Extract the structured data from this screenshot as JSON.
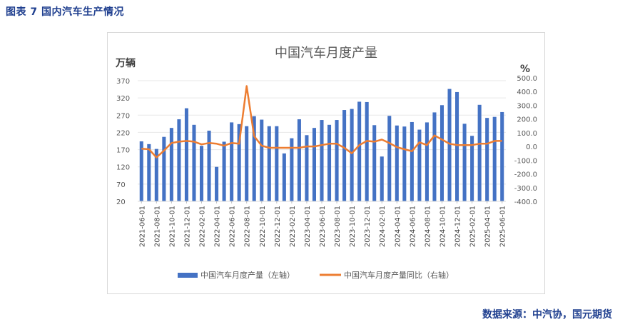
{
  "figure_caption": "图表  7  国内汽车生产情况",
  "source_note": "数据来源：中汽协，国元期货",
  "colors": {
    "bar": "#4472c4",
    "line": "#ed7d31",
    "caption": "#1f3f8f"
  },
  "chart_data": {
    "type": "bar",
    "title": "中国汽车月度产量",
    "ylabel": "万辆",
    "y2label": "%",
    "ylim": [
      20,
      370
    ],
    "y2lim": [
      -400,
      500
    ],
    "yticks": [
      20,
      70,
      120,
      170,
      220,
      270,
      320,
      370
    ],
    "y2ticks": [
      -400,
      -300,
      -200,
      -100,
      0,
      100,
      200,
      300,
      400,
      500
    ],
    "y2tick_labels": [
      "-400.0",
      "-300.0",
      "-200.0",
      "-100.0",
      "0.0",
      "100.0",
      "200.0",
      "300.0",
      "400.0",
      "500.0"
    ],
    "legend_position": "bottom",
    "categories": [
      "2021-06-01",
      "2021-07-01",
      "2021-08-01",
      "2021-09-01",
      "2021-10-01",
      "2021-11-01",
      "2021-12-01",
      "2022-01-01",
      "2022-02-01",
      "2022-03-01",
      "2022-04-01",
      "2022-05-01",
      "2022-06-01",
      "2022-07-01",
      "2022-08-01",
      "2022-09-01",
      "2022-10-01",
      "2022-11-01",
      "2022-12-01",
      "2023-01-01",
      "2023-02-01",
      "2023-03-01",
      "2023-04-01",
      "2023-05-01",
      "2023-06-01",
      "2023-07-01",
      "2023-08-01",
      "2023-09-01",
      "2023-10-01",
      "2023-11-01",
      "2023-12-01",
      "2024-01-01",
      "2024-02-01",
      "2024-03-01",
      "2024-04-01",
      "2024-05-01",
      "2024-06-01",
      "2024-07-01",
      "2024-08-01",
      "2024-09-01",
      "2024-10-01",
      "2024-11-01",
      "2024-12-01",
      "2025-01-01",
      "2025-02-01",
      "2025-03-01",
      "2025-04-01",
      "2025-05-01",
      "2025-06-01"
    ],
    "tick_labels": [
      "2021-06-01",
      "2021-08-01",
      "2021-10-01",
      "2021-12-01",
      "2022-02-01",
      "2022-04-01",
      "2022-06-01",
      "2022-08-01",
      "2022-10-01",
      "2022-12-01",
      "2023-02-01",
      "2023-04-01",
      "2023-06-01",
      "2023-08-01",
      "2023-10-01",
      "2023-12-01",
      "2024-02-01",
      "2024-04-01",
      "2024-06-01",
      "2024-08-01",
      "2024-10-01",
      "2024-12-01",
      "2025-02-01",
      "2025-04-01",
      "2025-06-01"
    ],
    "series": [
      {
        "name": "中国汽车月度产量（左轴）",
        "type": "bar",
        "axis": "left",
        "values": [
          194,
          186,
          172,
          207,
          233,
          258,
          290,
          242,
          181,
          225,
          120,
          193,
          249,
          244,
          238,
          267,
          257,
          238,
          238,
          159,
          203,
          258,
          212,
          233,
          256,
          242,
          256,
          285,
          288,
          309,
          308,
          241,
          150,
          268,
          240,
          237,
          250,
          228,
          249,
          278,
          299,
          346,
          337,
          245,
          210,
          300,
          262,
          265,
          279
        ]
      },
      {
        "name": "中国汽车月度产量同比（右轴）",
        "type": "line",
        "axis": "right",
        "values": [
          -16,
          -20,
          -80,
          -30,
          25,
          35,
          40,
          35,
          15,
          25,
          20,
          5,
          25,
          20,
          440,
          75,
          5,
          -10,
          -10,
          -10,
          -10,
          -10,
          0,
          0,
          10,
          20,
          20,
          -10,
          -50,
          10,
          40,
          35,
          50,
          25,
          -5,
          -20,
          -35,
          30,
          10,
          80,
          50,
          20,
          10,
          10,
          10,
          20,
          20,
          40,
          40
        ]
      }
    ]
  }
}
